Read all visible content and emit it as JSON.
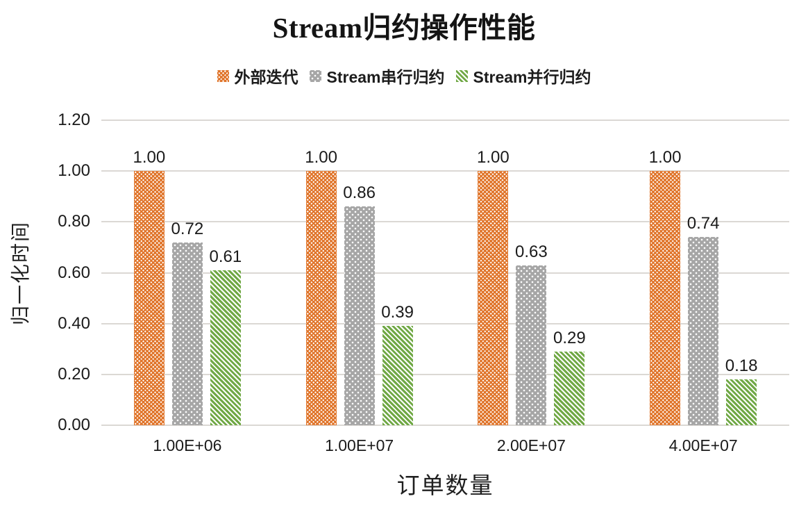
{
  "title": "Stream归约操作性能",
  "chart_data": {
    "type": "bar",
    "title": "Stream归约操作性能",
    "xlabel": "订单数量",
    "ylabel": "归一化时间",
    "categories": [
      "1.00E+06",
      "1.00E+07",
      "2.00E+07",
      "4.00E+07"
    ],
    "series": [
      {
        "name": "外部迭代",
        "color": "#e0752b",
        "pattern": "diamond-weave",
        "values": [
          1.0,
          1.0,
          1.0,
          1.0
        ],
        "labels": [
          "1.00",
          "1.00",
          "1.00",
          "1.00"
        ]
      },
      {
        "name": "Stream串行归约",
        "color": "#a6a6a6",
        "pattern": "white-dots",
        "values": [
          0.72,
          0.86,
          0.63,
          0.74
        ],
        "labels": [
          "0.72",
          "0.86",
          "0.63",
          "0.74"
        ]
      },
      {
        "name": "Stream并行归约",
        "color": "#70a845",
        "pattern": "diagonal-stripes",
        "values": [
          0.61,
          0.39,
          0.29,
          0.18
        ],
        "labels": [
          "0.61",
          "0.39",
          "0.29",
          "0.18"
        ]
      }
    ],
    "ylim": [
      0,
      1.2
    ],
    "y_ticks": [
      "0.00",
      "0.20",
      "0.40",
      "0.60",
      "0.80",
      "1.00",
      "1.20"
    ],
    "grid": true,
    "legend_position": "top",
    "gridline_color": "#dbd8d4",
    "label_color": "#1a1a1a"
  }
}
